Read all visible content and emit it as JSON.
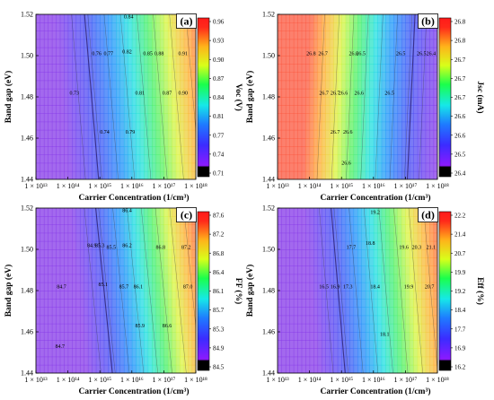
{
  "chart_data": [
    {
      "id": "a",
      "type": "heatmap",
      "panel_label": "(a)",
      "xlabel": "Carrier Concentration (1/cm³)",
      "ylabel": "Band gap (eV)",
      "x_ticks": [
        "1 × 10¹³",
        "1 × 10¹⁴",
        "1 × 10¹⁵",
        "1 × 10¹⁶",
        "1 × 10¹⁷",
        "1 × 10¹⁸"
      ],
      "x_log_range": [
        13,
        18
      ],
      "y_ticks": [
        "1.44",
        "1.46",
        "1.48",
        "1.50",
        "1.52"
      ],
      "ylim": [
        1.44,
        1.52
      ],
      "colorbar_label": "Voc (V)",
      "colorbar_ticks": [
        "0.71",
        "0.74",
        "0.77",
        "0.81",
        "0.84",
        "0.87",
        "0.90",
        "0.93",
        "0.96"
      ],
      "colorbar_range": [
        0.71,
        0.96
      ],
      "contour_labels": [
        {
          "text": "0.84",
          "x": 15.9,
          "y": 1.519
        },
        {
          "text": "0.76",
          "x": 14.9,
          "y": 1.501
        },
        {
          "text": "0.77",
          "x": 15.27,
          "y": 1.501
        },
        {
          "text": "0.82",
          "x": 15.85,
          "y": 1.502
        },
        {
          "text": "0.85",
          "x": 16.5,
          "y": 1.501
        },
        {
          "text": "0.88",
          "x": 16.85,
          "y": 1.501
        },
        {
          "text": "0.91",
          "x": 17.6,
          "y": 1.501
        },
        {
          "text": "0.73",
          "x": 14.2,
          "y": 1.482
        },
        {
          "text": "0.81",
          "x": 16.25,
          "y": 1.482
        },
        {
          "text": "0.87",
          "x": 17.1,
          "y": 1.482
        },
        {
          "text": "0.90",
          "x": 17.6,
          "y": 1.482
        },
        {
          "text": "0.74",
          "x": 15.15,
          "y": 1.463
        },
        {
          "text": "0.79",
          "x": 15.95,
          "y": 1.463
        }
      ],
      "field": {
        "slope": 5.5,
        "offset": 1.52,
        "vmin": 0.71,
        "vmax": 0.96,
        "tmin": 13.6,
        "tmax": 18.2
      }
    },
    {
      "id": "b",
      "type": "heatmap",
      "panel_label": "(b)",
      "xlabel": "Carrier Concentration (1/cm³)",
      "ylabel": "Band gap (eV)",
      "x_ticks": [
        "1 × 10¹³",
        "1 × 10¹⁴",
        "1 × 10¹⁵",
        "1 × 10¹⁶",
        "1 × 10¹⁷",
        "1 × 10¹⁸"
      ],
      "x_log_range": [
        13,
        18
      ],
      "y_ticks": [
        "1.44",
        "1.46",
        "1.48",
        "1.50",
        "1.52"
      ],
      "ylim": [
        1.44,
        1.52
      ],
      "colorbar_label": "Jsc (mA)",
      "colorbar_ticks": [
        "26.4",
        "26.5",
        "26.6",
        "26.6",
        "26.7",
        "26.7",
        "26.7",
        "26.8",
        "26.8"
      ],
      "colorbar_range": [
        26.4,
        26.8
      ],
      "contour_labels": [
        {
          "text": "26.8",
          "x": 14.05,
          "y": 1.501
        },
        {
          "text": "26.7",
          "x": 14.42,
          "y": 1.501
        },
        {
          "text": "26.6",
          "x": 15.38,
          "y": 1.501
        },
        {
          "text": "26.5",
          "x": 15.6,
          "y": 1.501
        },
        {
          "text": "26.5",
          "x": 16.85,
          "y": 1.501
        },
        {
          "text": "26.5",
          "x": 17.5,
          "y": 1.501
        },
        {
          "text": "26.4",
          "x": 17.8,
          "y": 1.501
        },
        {
          "text": "26.7",
          "x": 14.45,
          "y": 1.482
        },
        {
          "text": "26.7",
          "x": 14.8,
          "y": 1.482
        },
        {
          "text": "26.6",
          "x": 15.05,
          "y": 1.482
        },
        {
          "text": "26.6",
          "x": 15.55,
          "y": 1.482
        },
        {
          "text": "26.5",
          "x": 16.5,
          "y": 1.482
        },
        {
          "text": "26.7",
          "x": 14.8,
          "y": 1.463
        },
        {
          "text": "26.6",
          "x": 15.2,
          "y": 1.463
        },
        {
          "text": "26.6",
          "x": 15.15,
          "y": 1.448
        }
      ],
      "field": {
        "slope": -3.0,
        "offset": 1.48,
        "vmin": 26.4,
        "vmax": 26.8,
        "tmin": 13.9,
        "tmax": 18.0,
        "reverse": true
      }
    },
    {
      "id": "c",
      "type": "heatmap",
      "panel_label": "(c)",
      "xlabel": "Carrier Concentration (1/cm³)",
      "ylabel": "Band gap (eV)",
      "x_ticks": [
        "1 × 10¹³",
        "1 × 10¹⁴",
        "1 × 10¹⁵",
        "1 × 10¹⁶",
        "1 × 10¹⁷",
        "1 × 10¹⁸"
      ],
      "x_log_range": [
        13,
        18
      ],
      "y_ticks": [
        "1.44",
        "1.46",
        "1.48",
        "1.50",
        "1.52"
      ],
      "ylim": [
        1.44,
        1.52
      ],
      "colorbar_label": "FF (%)",
      "colorbar_ticks": [
        "84.5",
        "84.9",
        "85.3",
        "85.7",
        "86.1",
        "86.4",
        "86.8",
        "87.2",
        "87.6"
      ],
      "colorbar_range": [
        84.5,
        87.6
      ],
      "contour_labels": [
        {
          "text": "86.4",
          "x": 15.85,
          "y": 1.519
        },
        {
          "text": "84.9",
          "x": 14.75,
          "y": 1.502
        },
        {
          "text": "85.3",
          "x": 15.0,
          "y": 1.502
        },
        {
          "text": "85.5",
          "x": 15.35,
          "y": 1.501
        },
        {
          "text": "86.2",
          "x": 15.85,
          "y": 1.502
        },
        {
          "text": "86.8",
          "x": 16.9,
          "y": 1.501
        },
        {
          "text": "87.2",
          "x": 17.7,
          "y": 1.501
        },
        {
          "text": "84.7",
          "x": 13.8,
          "y": 1.482
        },
        {
          "text": "85.1",
          "x": 15.1,
          "y": 1.483
        },
        {
          "text": "85.7",
          "x": 15.75,
          "y": 1.482
        },
        {
          "text": "86.1",
          "x": 16.2,
          "y": 1.482
        },
        {
          "text": "87.0",
          "x": 17.75,
          "y": 1.482
        },
        {
          "text": "85.9",
          "x": 16.25,
          "y": 1.463
        },
        {
          "text": "86.6",
          "x": 17.1,
          "y": 1.463
        },
        {
          "text": "84.7",
          "x": 13.75,
          "y": 1.453
        }
      ],
      "field": {
        "slope": 6.5,
        "offset": 1.5,
        "vmin": 84.5,
        "vmax": 87.6,
        "tmin": 14.2,
        "tmax": 18.2
      }
    },
    {
      "id": "d",
      "type": "heatmap",
      "panel_label": "(d)",
      "xlabel": "Carrier Concentration (1/cm³)",
      "ylabel": "Band gap (eV)",
      "x_ticks": [
        "1 × 10¹³",
        "1 × 10¹⁴",
        "1 × 10¹⁵",
        "1 × 10¹⁶",
        "1 × 10¹⁷",
        "1 × 10¹⁸"
      ],
      "x_log_range": [
        13,
        18
      ],
      "y_ticks": [
        "1.44",
        "1.46",
        "1.48",
        "1.50",
        "1.52"
      ],
      "ylim": [
        1.44,
        1.52
      ],
      "colorbar_label": "Eff (%)",
      "colorbar_ticks": [
        "16.2",
        "16.9",
        "17.7",
        "18.4",
        "19.2",
        "19.9",
        "20.7",
        "21.4",
        "22.2"
      ],
      "colorbar_range": [
        16.2,
        22.2
      ],
      "contour_labels": [
        {
          "text": "19.2",
          "x": 16.05,
          "y": 1.518
        },
        {
          "text": "17.7",
          "x": 15.3,
          "y": 1.501
        },
        {
          "text": "18.8",
          "x": 15.9,
          "y": 1.503
        },
        {
          "text": "19.6",
          "x": 16.95,
          "y": 1.501
        },
        {
          "text": "20.3",
          "x": 17.35,
          "y": 1.501
        },
        {
          "text": "21.1",
          "x": 17.8,
          "y": 1.501
        },
        {
          "text": "16.5",
          "x": 14.45,
          "y": 1.482
        },
        {
          "text": "16.9",
          "x": 14.8,
          "y": 1.482
        },
        {
          "text": "17.3",
          "x": 15.2,
          "y": 1.482
        },
        {
          "text": "18.4",
          "x": 16.05,
          "y": 1.482
        },
        {
          "text": "19.9",
          "x": 17.1,
          "y": 1.482
        },
        {
          "text": "20.7",
          "x": 17.75,
          "y": 1.482
        },
        {
          "text": "18.1",
          "x": 16.35,
          "y": 1.459
        }
      ],
      "field": {
        "slope": 5.5,
        "offset": 1.49,
        "vmin": 16.2,
        "vmax": 22.2,
        "tmin": 14.0,
        "tmax": 18.2
      }
    }
  ]
}
